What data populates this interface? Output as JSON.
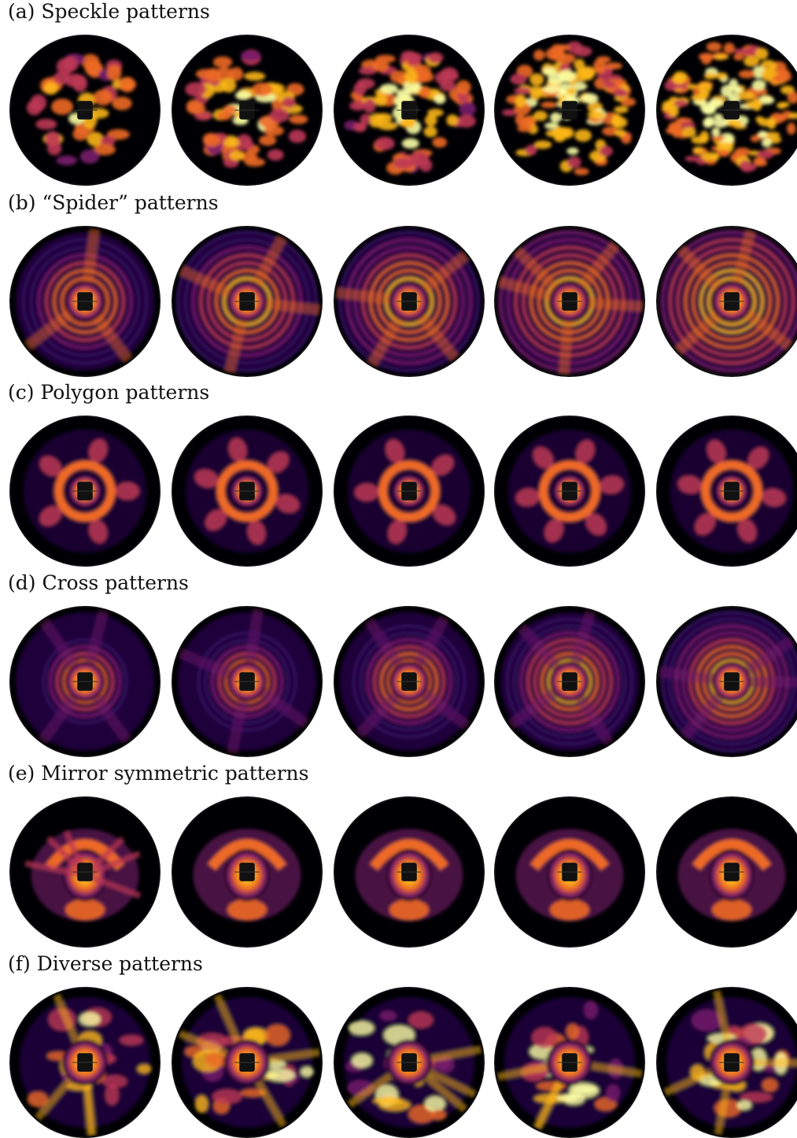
{
  "colormap": {
    "dark": "#000004",
    "deep_purple": "#320a5e",
    "purple": "#781c6d",
    "magenta": "#bc3754",
    "orange": "#ed6925",
    "yellow": "#fbb61a",
    "pale": "#fcffa4"
  },
  "sections": [
    {
      "label": "(a) Speckle patterns",
      "style": "speckle",
      "seeds": [
        11,
        23,
        37,
        41,
        59
      ]
    },
    {
      "label": "(b) “Spider” patterns",
      "style": "spider",
      "seeds": [
        3,
        7,
        13,
        17,
        19
      ]
    },
    {
      "label": "(c) Polygon patterns",
      "style": "polygon",
      "seeds": [
        5,
        6,
        5,
        6,
        6
      ]
    },
    {
      "label": "(d) Cross patterns",
      "style": "cross",
      "seeds": [
        29,
        31,
        43,
        47,
        53
      ]
    },
    {
      "label": "(e) Mirror symmetric patterns",
      "style": "mirror",
      "seeds": [
        61,
        67,
        71,
        73,
        79
      ]
    },
    {
      "label": "(f) Diverse patterns",
      "style": "diverse",
      "seeds": [
        83,
        89,
        97,
        101,
        103
      ]
    }
  ]
}
